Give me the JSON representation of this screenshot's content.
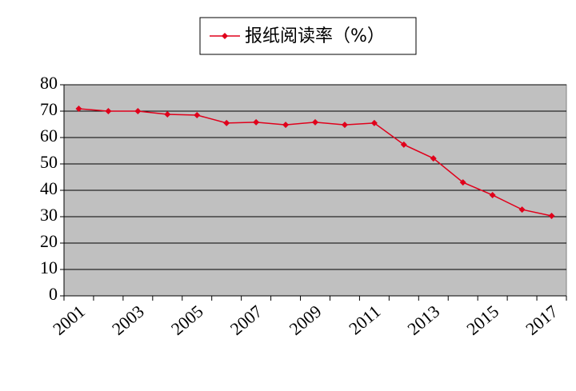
{
  "chart_data": {
    "type": "line",
    "title": "报纸阅读率（%）",
    "categories": [
      "2001",
      null,
      "2003",
      null,
      "2005",
      null,
      "2007",
      null,
      "2009",
      null,
      "2011",
      null,
      "2013",
      null,
      "2015",
      null,
      "2017"
    ],
    "series": [
      {
        "name": "报纸阅读率（%）",
        "color": "#e0001b",
        "values": [
          70.9,
          70.0,
          70.0,
          68.8,
          68.5,
          65.5,
          65.8,
          64.8,
          65.8,
          64.8,
          65.5,
          57.3,
          52.1,
          43.0,
          38.2,
          32.7,
          30.3
        ]
      }
    ],
    "ylim": [
      0,
      80
    ],
    "yticks": [
      0,
      10,
      20,
      30,
      40,
      50,
      60,
      70,
      80
    ],
    "grid": true,
    "legend": "top"
  }
}
